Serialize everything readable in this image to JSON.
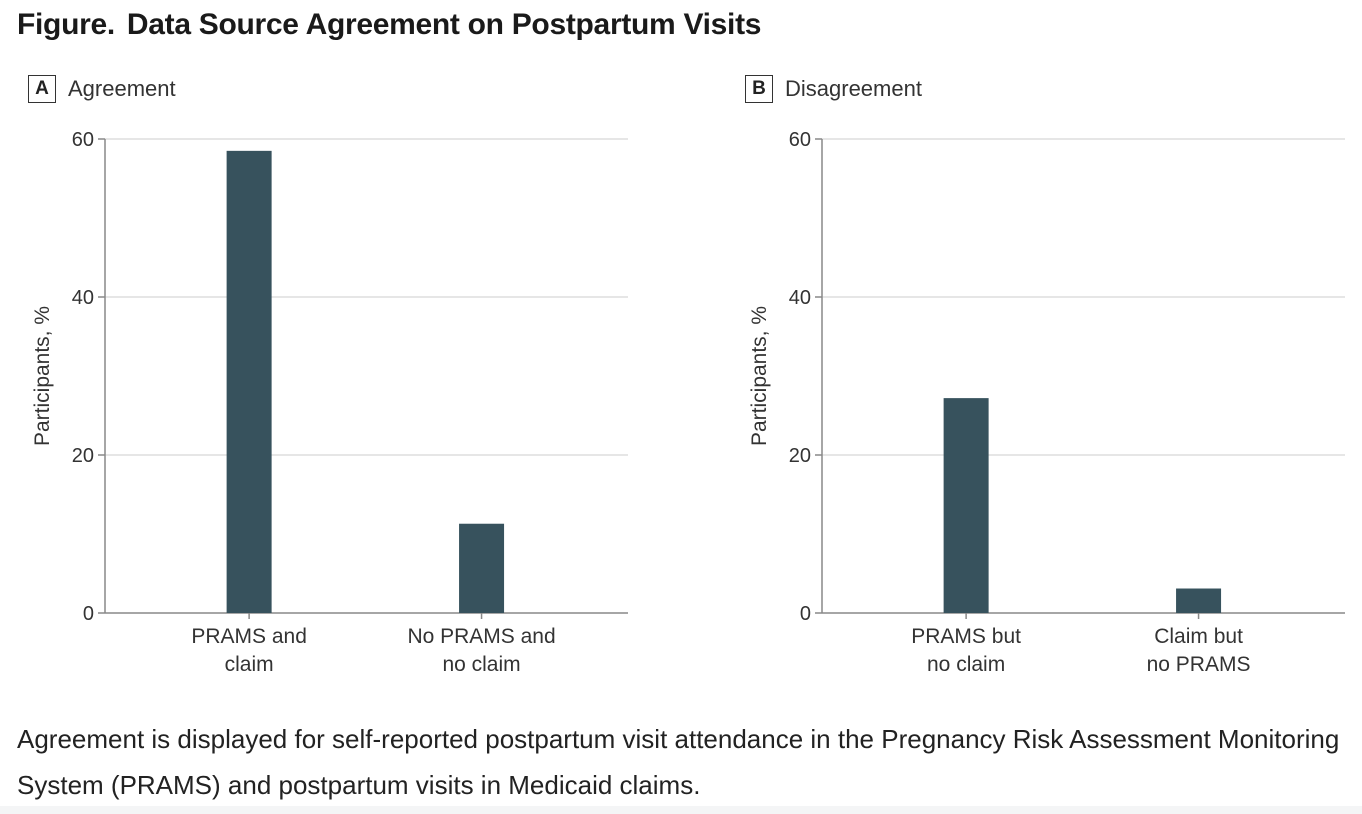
{
  "figure": {
    "label": "Figure.",
    "title": "Data Source Agreement on Postpartum Visits"
  },
  "caption": "Agreement is displayed for self-reported postpartum visit attendance in the Pregnancy Risk Assessment Monitoring System (PRAMS) and postpartum visits in Medicaid claims.",
  "colors": {
    "bar": "#37525d",
    "grid": "#dedede",
    "axis": "#888888"
  },
  "chart_data": [
    {
      "type": "bar",
      "panel_letter": "A",
      "title": "Agreement",
      "ylabel": "Participants, %",
      "xlabel": "",
      "ylim": [
        0,
        60
      ],
      "yticks": [
        0,
        20,
        40,
        60
      ],
      "grid": true,
      "categories": [
        [
          "PRAMS and",
          "claim"
        ],
        [
          "No PRAMS and",
          "no claim"
        ]
      ],
      "values": [
        58.5,
        11.3
      ]
    },
    {
      "type": "bar",
      "panel_letter": "B",
      "title": "Disagreement",
      "ylabel": "Participants, %",
      "xlabel": "",
      "ylim": [
        0,
        60
      ],
      "yticks": [
        0,
        20,
        40,
        60
      ],
      "grid": true,
      "categories": [
        [
          "PRAMS but",
          "no claim"
        ],
        [
          "Claim but",
          "no PRAMS"
        ]
      ],
      "values": [
        27.2,
        3.1
      ]
    }
  ]
}
